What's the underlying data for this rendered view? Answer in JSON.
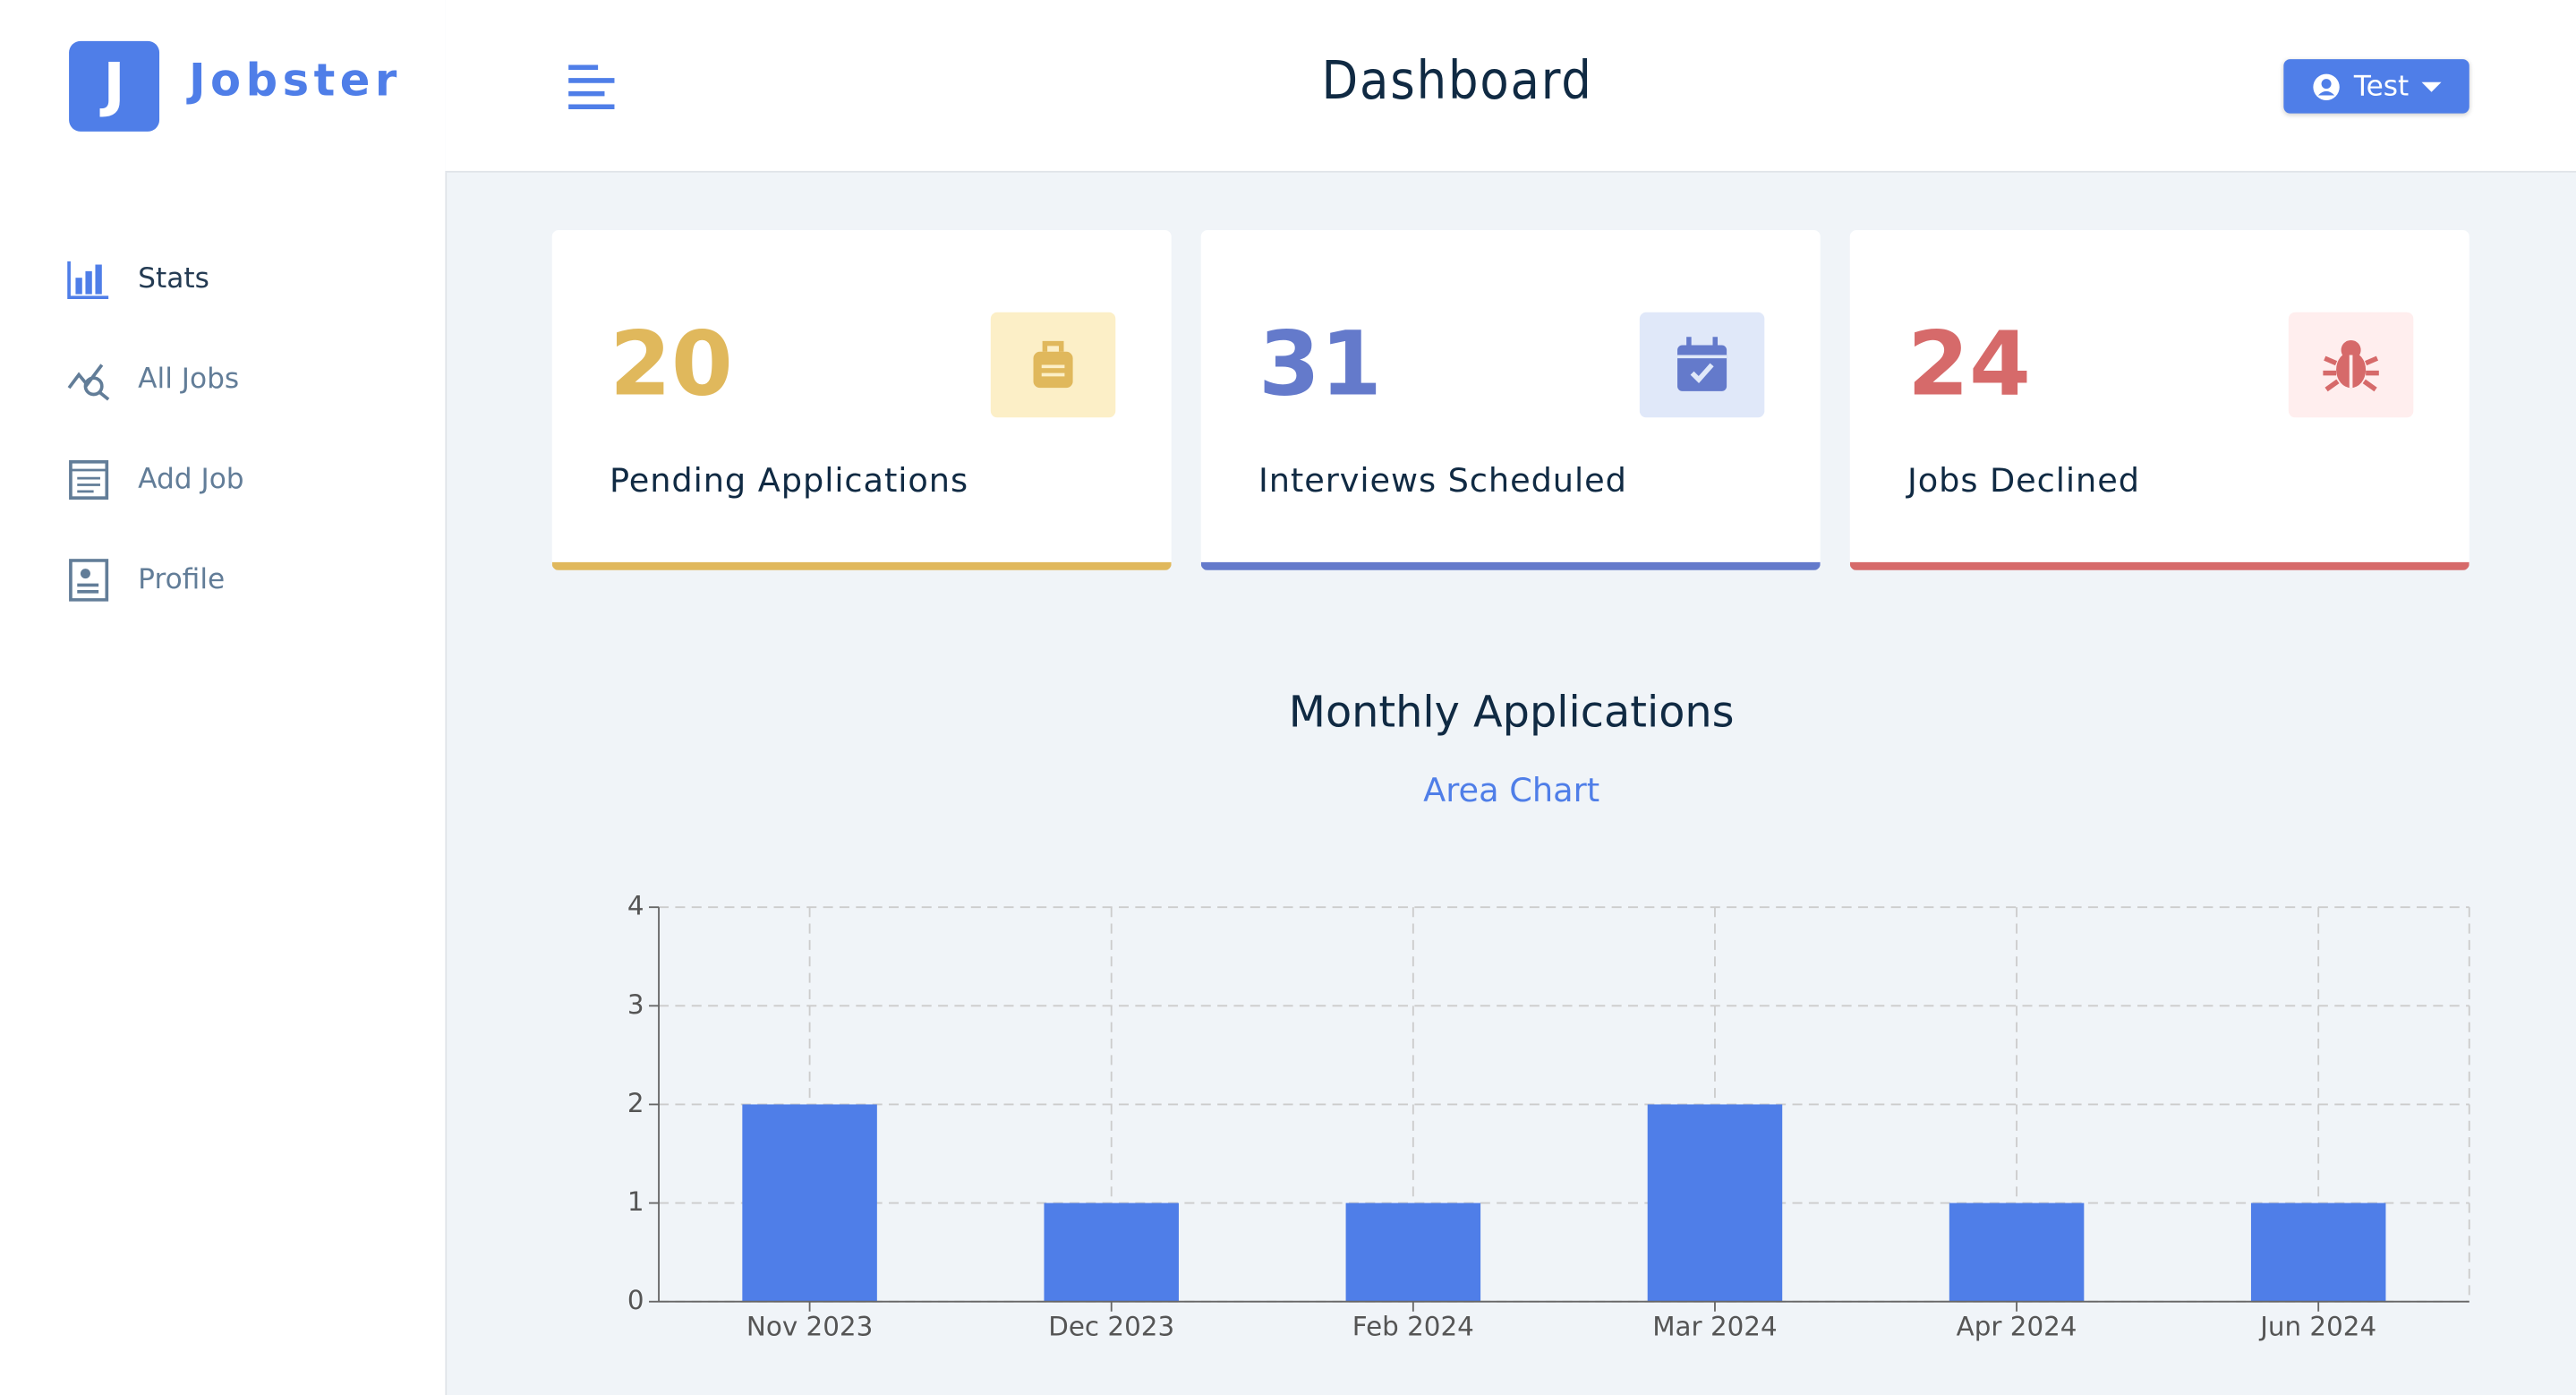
{
  "brand": {
    "logo": "J",
    "name": "Jobster"
  },
  "header": {
    "title": "Dashboard",
    "user": "Test"
  },
  "nav": [
    "Stats",
    "All Jobs",
    "Add Job",
    "Profile"
  ],
  "stats": [
    {
      "count": 20,
      "label": "Pending Applications"
    },
    {
      "count": 31,
      "label": "Interviews Scheduled"
    },
    {
      "count": 24,
      "label": "Jobs Declined"
    }
  ],
  "chart_data": {
    "type": "bar",
    "title": "Monthly Applications",
    "subtitle": "Area Chart",
    "categories": [
      "Nov 2023",
      "Dec 2023",
      "Feb 2024",
      "Mar 2024",
      "Apr 2024",
      "Jun 2024"
    ],
    "values": [
      2,
      1,
      1,
      2,
      1,
      1
    ],
    "color": "#4f7ee8",
    "ylim": [
      0,
      4
    ],
    "yticks": [
      0,
      1,
      2,
      3,
      4
    ],
    "grid": true
  }
}
